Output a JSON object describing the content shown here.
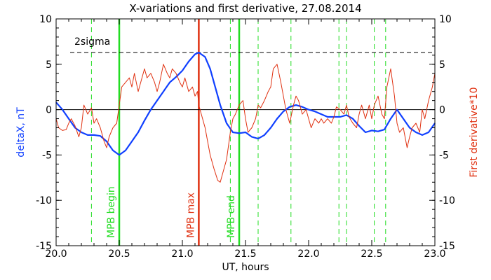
{
  "chart_data": {
    "type": "line",
    "title": "X-variations and first derivative, 27.08.2014",
    "xlabel": "UT, hours",
    "ylabel_left": "deltaX, nT",
    "ylabel_right": "First derivative*10",
    "xlim": [
      20.0,
      23.0
    ],
    "ylim_left": [
      -15,
      10
    ],
    "ylim_right": [
      -15,
      10
    ],
    "x_ticks": [
      "20.0",
      "20.5",
      "21.0",
      "21.5",
      "22.0",
      "22.5",
      "23.0"
    ],
    "y_ticks": [
      "10",
      "5",
      "0",
      "-5",
      "-10",
      "-15"
    ],
    "colors": {
      "deltaX": "#1040ff",
      "derivative": "#e03010",
      "mpb": "#22dd22",
      "mpb_max": "#e03010",
      "sigma": "#000000"
    },
    "sigma_level": 6.3,
    "sigma_label": "2sigma",
    "zero_line": 0,
    "solid_markers": [
      {
        "x": 20.5,
        "label": "MPB begin",
        "color": "#22dd22"
      },
      {
        "x": 21.13,
        "label": "MPB max",
        "color": "#e03010"
      },
      {
        "x": 21.45,
        "label": "MPB end",
        "color": "#22dd22"
      }
    ],
    "dashed_markers": [
      20.28,
      21.38,
      21.6,
      21.86,
      22.24,
      22.3,
      22.52,
      22.61
    ],
    "series": [
      {
        "name": "deltaX",
        "axis": "left",
        "x": [
          20.0,
          20.05,
          20.1,
          20.15,
          20.2,
          20.25,
          20.3,
          20.35,
          20.4,
          20.45,
          20.5,
          20.55,
          20.6,
          20.65,
          20.7,
          20.75,
          20.8,
          20.85,
          20.9,
          20.95,
          21.0,
          21.05,
          21.1,
          21.13,
          21.18,
          21.22,
          21.26,
          21.3,
          21.35,
          21.4,
          21.45,
          21.5,
          21.55,
          21.6,
          21.65,
          21.7,
          21.75,
          21.8,
          21.85,
          21.9,
          21.95,
          22.0,
          22.05,
          22.1,
          22.15,
          22.2,
          22.25,
          22.3,
          22.35,
          22.4,
          22.45,
          22.5,
          22.55,
          22.6,
          22.65,
          22.7,
          22.75,
          22.8,
          22.85,
          22.9,
          22.95,
          23.0
        ],
        "y": [
          0.8,
          0.0,
          -1.0,
          -2.0,
          -2.5,
          -2.8,
          -2.8,
          -2.9,
          -3.5,
          -4.5,
          -5.0,
          -4.5,
          -3.5,
          -2.5,
          -1.2,
          0.0,
          1.0,
          2.0,
          3.0,
          3.6,
          4.3,
          5.3,
          6.1,
          6.3,
          5.8,
          4.5,
          2.5,
          0.5,
          -1.5,
          -2.5,
          -2.6,
          -2.5,
          -3.0,
          -3.2,
          -2.8,
          -2.0,
          -1.0,
          -0.2,
          0.3,
          0.5,
          0.3,
          0.0,
          -0.2,
          -0.5,
          -0.8,
          -0.8,
          -0.8,
          -0.6,
          -1.0,
          -1.8,
          -2.5,
          -2.3,
          -2.4,
          -2.2,
          -1.0,
          0.0,
          -1.0,
          -2.0,
          -2.5,
          -2.8,
          -2.5,
          -1.5
        ]
      },
      {
        "name": "First derivative*10",
        "axis": "right",
        "x": [
          20.0,
          20.02,
          20.05,
          20.08,
          20.1,
          20.12,
          20.15,
          20.18,
          20.2,
          20.22,
          20.25,
          20.28,
          20.3,
          20.32,
          20.35,
          20.38,
          20.4,
          20.42,
          20.45,
          20.48,
          20.5,
          20.52,
          20.55,
          20.58,
          20.6,
          20.62,
          20.65,
          20.68,
          20.7,
          20.72,
          20.75,
          20.78,
          20.8,
          20.82,
          20.85,
          20.88,
          20.9,
          20.92,
          20.95,
          20.98,
          21.0,
          21.02,
          21.05,
          21.08,
          21.1,
          21.12,
          21.13,
          21.15,
          21.18,
          21.2,
          21.22,
          21.25,
          21.28,
          21.3,
          21.32,
          21.35,
          21.38,
          21.4,
          21.42,
          21.45,
          21.48,
          21.5,
          21.52,
          21.55,
          21.58,
          21.6,
          21.62,
          21.65,
          21.68,
          21.7,
          21.72,
          21.75,
          21.78,
          21.8,
          21.82,
          21.85,
          21.88,
          21.9,
          21.92,
          21.95,
          21.98,
          22.0,
          22.02,
          22.05,
          22.08,
          22.1,
          22.12,
          22.15,
          22.18,
          22.2,
          22.22,
          22.25,
          22.28,
          22.3,
          22.32,
          22.35,
          22.38,
          22.4,
          22.42,
          22.45,
          22.48,
          22.5,
          22.52,
          22.55,
          22.58,
          22.6,
          22.62,
          22.65,
          22.68,
          22.7,
          22.72,
          22.75,
          22.78,
          22.8,
          22.82,
          22.85,
          22.88,
          22.9,
          22.92,
          22.95,
          22.98,
          23.0
        ],
        "y": [
          -1.0,
          -2.0,
          -2.3,
          -2.2,
          -1.5,
          -1.0,
          -1.8,
          -3.0,
          -2.0,
          0.5,
          -0.5,
          0.2,
          -1.5,
          -1.0,
          -2.0,
          -3.5,
          -4.2,
          -3.0,
          -2.0,
          -1.5,
          0.5,
          2.5,
          3.0,
          3.5,
          2.5,
          4.0,
          2.0,
          3.5,
          4.5,
          3.5,
          4.0,
          3.0,
          2.0,
          3.0,
          5.0,
          4.0,
          3.5,
          4.5,
          4.0,
          3.0,
          2.5,
          3.5,
          2.0,
          2.5,
          1.5,
          2.0,
          0.5,
          -0.5,
          -2.0,
          -3.5,
          -5.0,
          -6.5,
          -7.8,
          -8.0,
          -7.0,
          -5.5,
          -2.5,
          -1.0,
          -0.5,
          0.5,
          1.0,
          -1.0,
          -2.5,
          -2.0,
          -1.0,
          0.5,
          0.2,
          1.0,
          2.0,
          2.5,
          4.5,
          5.0,
          3.0,
          1.5,
          0.0,
          -1.5,
          0.5,
          1.5,
          1.0,
          -0.5,
          0.0,
          -1.0,
          -2.0,
          -1.0,
          -1.5,
          -1.0,
          -1.5,
          -1.0,
          -1.5,
          -0.8,
          0.3,
          0.0,
          -0.5,
          0.5,
          -0.8,
          -1.5,
          -2.0,
          -0.5,
          0.5,
          -1.0,
          0.5,
          -1.0,
          0.5,
          1.5,
          -0.5,
          -1.0,
          2.5,
          4.5,
          1.5,
          -1.5,
          -2.5,
          -2.0,
          -4.2,
          -3.0,
          -2.0,
          -1.5,
          -2.5,
          0.0,
          -1.0,
          1.0,
          2.5,
          4.0
        ]
      }
    ]
  }
}
